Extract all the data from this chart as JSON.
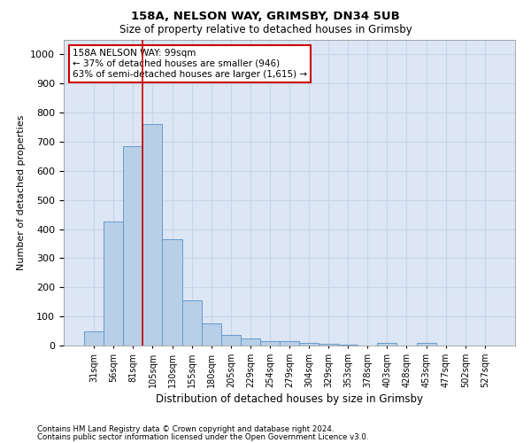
{
  "title1": "158A, NELSON WAY, GRIMSBY, DN34 5UB",
  "title2": "Size of property relative to detached houses in Grimsby",
  "xlabel": "Distribution of detached houses by size in Grimsby",
  "ylabel": "Number of detached properties",
  "categories": [
    "31sqm",
    "56sqm",
    "81sqm",
    "105sqm",
    "130sqm",
    "155sqm",
    "180sqm",
    "205sqm",
    "229sqm",
    "254sqm",
    "279sqm",
    "304sqm",
    "329sqm",
    "353sqm",
    "378sqm",
    "403sqm",
    "428sqm",
    "453sqm",
    "477sqm",
    "502sqm",
    "527sqm"
  ],
  "values": [
    50,
    425,
    685,
    760,
    365,
    155,
    75,
    38,
    25,
    15,
    15,
    8,
    5,
    2,
    0,
    8,
    0,
    8,
    0,
    0,
    0
  ],
  "bar_color": "#b8cfe8",
  "bar_edge_color": "#6699cc",
  "vline_x": 2.5,
  "vline_color": "#cc0000",
  "annotation_text": "158A NELSON WAY: 99sqm\n← 37% of detached houses are smaller (946)\n63% of semi-detached houses are larger (1,615) →",
  "annotation_box_color": "#ffffff",
  "annotation_box_edge_color": "#cc0000",
  "ylim": [
    0,
    1050
  ],
  "yticks": [
    0,
    100,
    200,
    300,
    400,
    500,
    600,
    700,
    800,
    900,
    1000
  ],
  "grid_color": "#c8d4e8",
  "bg_color": "#dce6f4",
  "footer1": "Contains HM Land Registry data © Crown copyright and database right 2024.",
  "footer2": "Contains public sector information licensed under the Open Government Licence v3.0."
}
